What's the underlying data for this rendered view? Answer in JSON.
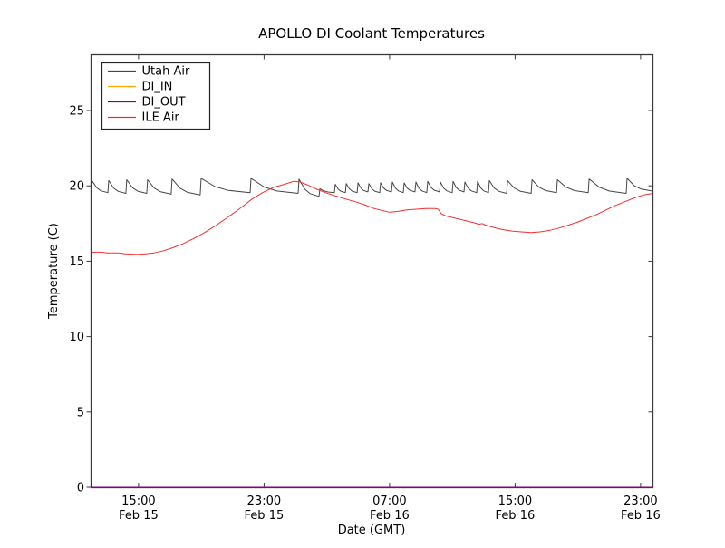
{
  "figure": {
    "background": "#ffffff",
    "frame_color": "#3a3a3a"
  },
  "chart_data": {
    "type": "line",
    "title": "APOLLO DI Coolant Temperatures",
    "xlabel": "Date (GMT)",
    "ylabel": "Temperature (C)",
    "x_unit_hours_since": "Feb 15 12:00 GMT",
    "xlim": [
      0,
      35.76
    ],
    "ylim": [
      0,
      28.7
    ],
    "grid": false,
    "legend_position": "upper-left",
    "yticks": [
      0,
      5,
      10,
      15,
      20,
      25
    ],
    "xticks": [
      {
        "t": 3,
        "time": "15:00",
        "date": "Feb 15"
      },
      {
        "t": 11,
        "time": "23:00",
        "date": "Feb 15"
      },
      {
        "t": 19,
        "time": "07:00",
        "date": "Feb 16"
      },
      {
        "t": 27,
        "time": "15:00",
        "date": "Feb 16"
      },
      {
        "t": 35,
        "time": "23:00",
        "date": "Feb 16"
      }
    ],
    "series": [
      {
        "name": "Utah Air",
        "color": "#454545",
        "shape": "sawtooth",
        "start": [
          0,
          20.0
        ],
        "end": [
          35.76,
          19.65
        ],
        "teeth": [
          {
            "t": 0.06,
            "peak": 20.3,
            "valley": 19.55
          },
          {
            "t": 1.1,
            "peak": 20.35,
            "valley": 19.5
          },
          {
            "t": 2.25,
            "peak": 20.4,
            "valley": 19.5
          },
          {
            "t": 3.58,
            "peak": 20.4,
            "valley": 19.45
          },
          {
            "t": 5.14,
            "peak": 20.45,
            "valley": 19.4
          },
          {
            "t": 6.99,
            "peak": 20.5,
            "valley": 19.55
          },
          {
            "t": 10.17,
            "peak": 20.5,
            "valley": 19.5
          },
          {
            "t": 13.23,
            "peak": 20.45,
            "valley": 19.3
          },
          {
            "t": 14.56,
            "peak": 19.8,
            "valley": 19.55
          },
          {
            "t": 15.54,
            "peak": 20.1,
            "valley": 19.55
          },
          {
            "t": 16.24,
            "peak": 20.15,
            "valley": 19.55
          },
          {
            "t": 16.99,
            "peak": 20.2,
            "valley": 19.6
          },
          {
            "t": 17.68,
            "peak": 20.15,
            "valley": 19.55
          },
          {
            "t": 18.43,
            "peak": 20.2,
            "valley": 19.6
          },
          {
            "t": 19.18,
            "peak": 20.25,
            "valley": 19.55
          },
          {
            "t": 19.93,
            "peak": 20.2,
            "valley": 19.6
          },
          {
            "t": 20.68,
            "peak": 20.25,
            "valley": 19.55
          },
          {
            "t": 21.43,
            "peak": 20.3,
            "valley": 19.6
          },
          {
            "t": 22.24,
            "peak": 20.25,
            "valley": 19.55
          },
          {
            "t": 23.05,
            "peak": 20.3,
            "valley": 19.6
          },
          {
            "t": 23.8,
            "peak": 20.25,
            "valley": 19.55
          },
          {
            "t": 24.61,
            "peak": 20.3,
            "valley": 19.55
          },
          {
            "t": 25.36,
            "peak": 20.35,
            "valley": 19.5
          },
          {
            "t": 26.52,
            "peak": 20.35,
            "valley": 19.5
          },
          {
            "t": 28.08,
            "peak": 20.4,
            "valley": 19.55
          },
          {
            "t": 29.7,
            "peak": 20.4,
            "valley": 19.55
          },
          {
            "t": 31.72,
            "peak": 20.45,
            "valley": 19.5
          },
          {
            "t": 34.14,
            "peak": 20.5,
            "valley": 19.6
          }
        ]
      },
      {
        "name": "DI_IN",
        "color": "#ffa500",
        "shape": "points",
        "points": [
          [
            0,
            0
          ],
          [
            35.76,
            0
          ]
        ]
      },
      {
        "name": "DI_OUT",
        "color": "#800080",
        "shape": "points",
        "points": [
          [
            0,
            0
          ],
          [
            35.76,
            0
          ]
        ]
      },
      {
        "name": "ILE Air",
        "color": "#f03030",
        "shape": "points",
        "points": [
          [
            0,
            15.6
          ],
          [
            0.6,
            15.6
          ],
          [
            1.0,
            15.55
          ],
          [
            1.7,
            15.55
          ],
          [
            2.1,
            15.5
          ],
          [
            2.9,
            15.45
          ],
          [
            3.5,
            15.5
          ],
          [
            4.0,
            15.55
          ],
          [
            4.6,
            15.7
          ],
          [
            5.2,
            15.9
          ],
          [
            5.8,
            16.15
          ],
          [
            6.5,
            16.5
          ],
          [
            7.2,
            16.9
          ],
          [
            7.9,
            17.35
          ],
          [
            8.6,
            17.85
          ],
          [
            9.4,
            18.45
          ],
          [
            10.2,
            19.1
          ],
          [
            10.9,
            19.55
          ],
          [
            11.6,
            19.9
          ],
          [
            12.3,
            20.1
          ],
          [
            12.9,
            20.3
          ],
          [
            13.3,
            20.25
          ],
          [
            13.8,
            20.05
          ],
          [
            14.3,
            19.8
          ],
          [
            14.9,
            19.55
          ],
          [
            15.5,
            19.35
          ],
          [
            16.1,
            19.15
          ],
          [
            16.8,
            18.95
          ],
          [
            17.4,
            18.75
          ],
          [
            18.0,
            18.5
          ],
          [
            18.6,
            18.35
          ],
          [
            19.0,
            18.25
          ],
          [
            19.5,
            18.3
          ],
          [
            20.1,
            18.4
          ],
          [
            20.7,
            18.45
          ],
          [
            21.3,
            18.5
          ],
          [
            21.9,
            18.5
          ],
          [
            22.1,
            18.45
          ],
          [
            22.3,
            18.15
          ],
          [
            22.6,
            18.0
          ],
          [
            23.2,
            17.85
          ],
          [
            23.8,
            17.7
          ],
          [
            24.4,
            17.55
          ],
          [
            24.7,
            17.45
          ],
          [
            24.9,
            17.5
          ],
          [
            25.1,
            17.4
          ],
          [
            25.6,
            17.25
          ],
          [
            26.2,
            17.1
          ],
          [
            26.8,
            17.0
          ],
          [
            27.4,
            16.95
          ],
          [
            28.0,
            16.9
          ],
          [
            28.6,
            16.95
          ],
          [
            29.2,
            17.05
          ],
          [
            29.8,
            17.2
          ],
          [
            30.4,
            17.4
          ],
          [
            31.0,
            17.6
          ],
          [
            31.6,
            17.85
          ],
          [
            32.2,
            18.1
          ],
          [
            32.8,
            18.4
          ],
          [
            33.4,
            18.7
          ],
          [
            34.0,
            18.95
          ],
          [
            34.6,
            19.2
          ],
          [
            35.2,
            19.4
          ],
          [
            35.76,
            19.5
          ]
        ]
      }
    ]
  }
}
